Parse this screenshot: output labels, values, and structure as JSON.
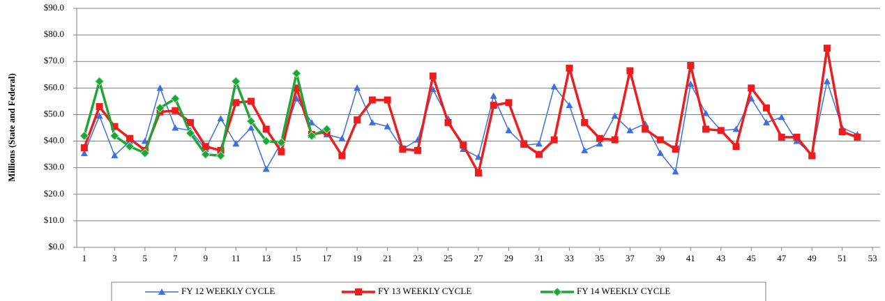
{
  "chart_data": {
    "type": "line",
    "y_label": "Millions (State and Federal)",
    "x": [
      1,
      2,
      3,
      4,
      5,
      6,
      7,
      8,
      9,
      10,
      11,
      12,
      13,
      14,
      15,
      16,
      17,
      18,
      19,
      20,
      21,
      22,
      23,
      24,
      25,
      26,
      27,
      28,
      29,
      30,
      31,
      32,
      33,
      34,
      35,
      36,
      37,
      38,
      39,
      40,
      41,
      42,
      43,
      44,
      45,
      46,
      47,
      48,
      49,
      50,
      51,
      52
    ],
    "xlim": [
      0.5,
      53.5
    ],
    "xticks": [
      1,
      3,
      5,
      7,
      9,
      11,
      13,
      15,
      17,
      19,
      21,
      23,
      25,
      27,
      29,
      31,
      33,
      35,
      37,
      39,
      41,
      43,
      45,
      47,
      49,
      51,
      53
    ],
    "ylim": [
      0,
      90
    ],
    "yticks": [
      {
        "value": 0,
        "label": "$0.0"
      },
      {
        "value": 10,
        "label": "$10.0"
      },
      {
        "value": 20,
        "label": "$20.0"
      },
      {
        "value": 30,
        "label": "$30.0"
      },
      {
        "value": 40,
        "label": "$40.0"
      },
      {
        "value": 50,
        "label": "$50.0"
      },
      {
        "value": 60,
        "label": "$60.0"
      },
      {
        "value": 70,
        "label": "$70.0"
      },
      {
        "value": 80,
        "label": "$80.0"
      },
      {
        "value": 90,
        "label": "$90.0"
      }
    ],
    "grid": true,
    "legend": "bottom",
    "series": [
      {
        "name": "FY 12 WEEKLY CYCLE",
        "color": "#3c6fe0",
        "marker": "triangle",
        "values": [
          35.4,
          49.5,
          34.6,
          40,
          40,
          60,
          45,
          44,
          37,
          48.5,
          39,
          45,
          29.5,
          39.5,
          56,
          47,
          42.5,
          41,
          60,
          47,
          45.5,
          37,
          40.5,
          59.5,
          48.5,
          37,
          34,
          57,
          44,
          38.5,
          39,
          60.5,
          53.5,
          36.5,
          39,
          49.5,
          44,
          46.5,
          35.5,
          28.5,
          61.5,
          50.5,
          44,
          44.5,
          56,
          47,
          49,
          40,
          35,
          62.5,
          45,
          42.5
        ]
      },
      {
        "name": "FY 13 WEEKLY CYCLE",
        "color": "#ee1c1c",
        "marker": "square",
        "values": [
          37.5,
          53,
          45.5,
          41,
          36.5,
          51,
          51.5,
          47,
          38,
          36.5,
          54.5,
          55,
          44.5,
          36,
          60,
          42.5,
          43.5,
          34.5,
          48,
          55.5,
          55.5,
          37,
          36.5,
          64.5,
          47,
          38.5,
          28,
          53.5,
          54.5,
          39,
          35,
          40.5,
          67.5,
          47,
          41,
          40.5,
          66.5,
          44.5,
          40.5,
          37,
          68.5,
          44.5,
          44,
          38,
          60,
          52.5,
          41.5,
          41.5,
          34.5,
          75,
          43.5,
          41.5
        ]
      },
      {
        "name": "FY 14 WEEKLY CYCLE",
        "color": "#1ea538",
        "marker": "diamond",
        "values": [
          42,
          62.5,
          42,
          38,
          35.5,
          52.5,
          56,
          43,
          35,
          34.5,
          62.5,
          47.5,
          40,
          39.5,
          65.5,
          42,
          44.5,
          null,
          null,
          null,
          null,
          null,
          null,
          null,
          null,
          null,
          null,
          null,
          null,
          null,
          null,
          null,
          null,
          null,
          null,
          null,
          null,
          null,
          null,
          null,
          null,
          null,
          null,
          null,
          null,
          null,
          null,
          null,
          null,
          null,
          null,
          null
        ]
      }
    ]
  }
}
